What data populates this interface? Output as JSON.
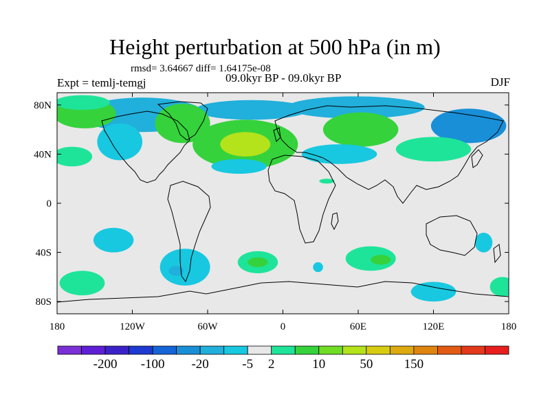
{
  "chart_data": {
    "type": "heatmap",
    "title": "Height perturbation at 500 hPa (in m)",
    "stats_line": "rmsd= 3.64667 diff= 1.64175e-08",
    "experiment_label": "Expt = temlj-temgj",
    "period_label": "09.0kyr BP - 09.0kyr BP",
    "season_label": "DJF",
    "projection": "cylindrical equidistant",
    "x_range": [
      -180,
      180
    ],
    "y_range": [
      -90,
      90
    ],
    "x_tick_values": [
      -180,
      -120,
      -60,
      0,
      60,
      120,
      180
    ],
    "x_tick_labels": [
      "180",
      "120W",
      "60W",
      "0",
      "60E",
      "120E",
      "180"
    ],
    "y_tick_values": [
      80,
      40,
      0,
      -40,
      -80
    ],
    "y_tick_labels": [
      "80N",
      "40N",
      "0",
      "40S",
      "80S"
    ],
    "colorbar": {
      "colors": [
        "#7b2fd6",
        "#5f1fd6",
        "#3b22c8",
        "#1d3bd1",
        "#1565d6",
        "#198fd7",
        "#21afdb",
        "#18c8e0",
        "#e8e8e8",
        "#1ee49a",
        "#35d23c",
        "#71dc25",
        "#b4e21b",
        "#d8cc12",
        "#dcaa0e",
        "#e08410",
        "#e35a12",
        "#e3381a",
        "#e61f1e"
      ],
      "tick_labels": [
        "-200",
        "-100",
        "-20",
        "-5",
        "2",
        "10",
        "50",
        "150"
      ],
      "tick_after_color_index": [
        1,
        3,
        5,
        7,
        8,
        10,
        12,
        14
      ]
    },
    "field_anomalies": [
      {
        "lon": -112,
        "lat": 72,
        "rlon": 50,
        "rlat": 14,
        "level": 6
      },
      {
        "lon": -25,
        "lat": 76,
        "rlon": 45,
        "rlat": 8,
        "level": 6
      },
      {
        "lon": 58,
        "lat": 78,
        "rlon": 55,
        "rlat": 9,
        "level": 6
      },
      {
        "lon": 148,
        "lat": 63,
        "rlon": 30,
        "rlat": 14,
        "level": 5
      },
      {
        "lon": -130,
        "lat": 50,
        "rlon": 18,
        "rlat": 15,
        "level": 7
      },
      {
        "lon": -168,
        "lat": 38,
        "rlon": 16,
        "rlat": 8,
        "level": 9
      },
      {
        "lon": -158,
        "lat": 73,
        "rlon": 25,
        "rlat": 12,
        "level": 10
      },
      {
        "lon": -80,
        "lat": 65,
        "rlon": 22,
        "rlat": 16,
        "level": 10
      },
      {
        "lon": -30,
        "lat": 48,
        "rlon": 42,
        "rlat": 20,
        "level": 10
      },
      {
        "lon": -30,
        "lat": 48,
        "rlon": 20,
        "rlat": 10,
        "level": 12
      },
      {
        "lon": 62,
        "lat": 60,
        "rlon": 30,
        "rlat": 14,
        "level": 10
      },
      {
        "lon": 120,
        "lat": 44,
        "rlon": 30,
        "rlat": 10,
        "level": 9
      },
      {
        "lon": -160,
        "lat": 82,
        "rlon": 22,
        "rlat": 6,
        "level": 9
      },
      {
        "lon": 45,
        "lat": 40,
        "rlon": 30,
        "rlat": 8,
        "level": 7
      },
      {
        "lon": -35,
        "lat": 30,
        "rlon": 22,
        "rlat": 6,
        "level": 7
      },
      {
        "lon": -135,
        "lat": -30,
        "rlon": 16,
        "rlat": 10,
        "level": 7
      },
      {
        "lon": -78,
        "lat": -52,
        "rlon": 20,
        "rlat": 15,
        "level": 7
      },
      {
        "lon": -85,
        "lat": -55,
        "rlon": 6,
        "rlat": 4,
        "level": 6
      },
      {
        "lon": -20,
        "lat": -48,
        "rlon": 16,
        "rlat": 9,
        "level": 9
      },
      {
        "lon": -20,
        "lat": -48,
        "rlon": 8,
        "rlat": 4,
        "level": 10
      },
      {
        "lon": 70,
        "lat": -45,
        "rlon": 20,
        "rlat": 10,
        "level": 9
      },
      {
        "lon": 78,
        "lat": -46,
        "rlon": 8,
        "rlat": 4,
        "level": 10
      },
      {
        "lon": 28,
        "lat": -52,
        "rlon": 4,
        "rlat": 4,
        "level": 7
      },
      {
        "lon": 160,
        "lat": -32,
        "rlon": 7,
        "rlat": 8,
        "level": 7
      },
      {
        "lon": 120,
        "lat": -72,
        "rlon": 18,
        "rlat": 8,
        "level": 7
      },
      {
        "lon": -160,
        "lat": -65,
        "rlon": 18,
        "rlat": 10,
        "level": 9
      },
      {
        "lon": 175,
        "lat": -68,
        "rlon": 10,
        "rlat": 8,
        "level": 9
      },
      {
        "lon": 35,
        "lat": 18,
        "rlon": 6,
        "rlat": 2,
        "level": 9
      }
    ]
  }
}
